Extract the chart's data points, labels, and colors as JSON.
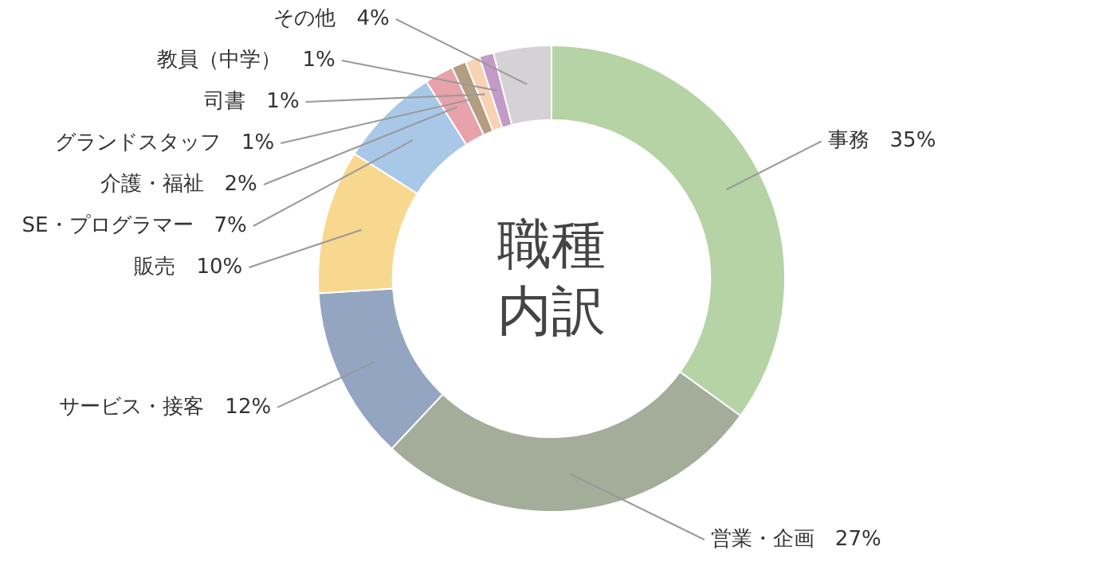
{
  "chart_data": {
    "type": "donut",
    "title": "職種内訳",
    "categories": [
      "事務",
      "営業・企画",
      "サービス・接客",
      "販売",
      "SE・プログラマー",
      "介護・福祉",
      "グランドスタッフ",
      "司書",
      "教員（中学）",
      "その他"
    ],
    "values": [
      35,
      27,
      12,
      10,
      7,
      2,
      1,
      1,
      1,
      4
    ],
    "value_labels": [
      "35%",
      "27%",
      "12%",
      "10%",
      "7%",
      "2%",
      "1%",
      "1%",
      "1%",
      "4%"
    ],
    "colors": [
      "#b5d3a5",
      "#a3ad9a",
      "#93a5c0",
      "#f8d88f",
      "#a9c8e8",
      "#e8a2ab",
      "#b39e80",
      "#f8d3b3",
      "#c39ac8",
      "#d4d2d4"
    ],
    "legend": false
  }
}
